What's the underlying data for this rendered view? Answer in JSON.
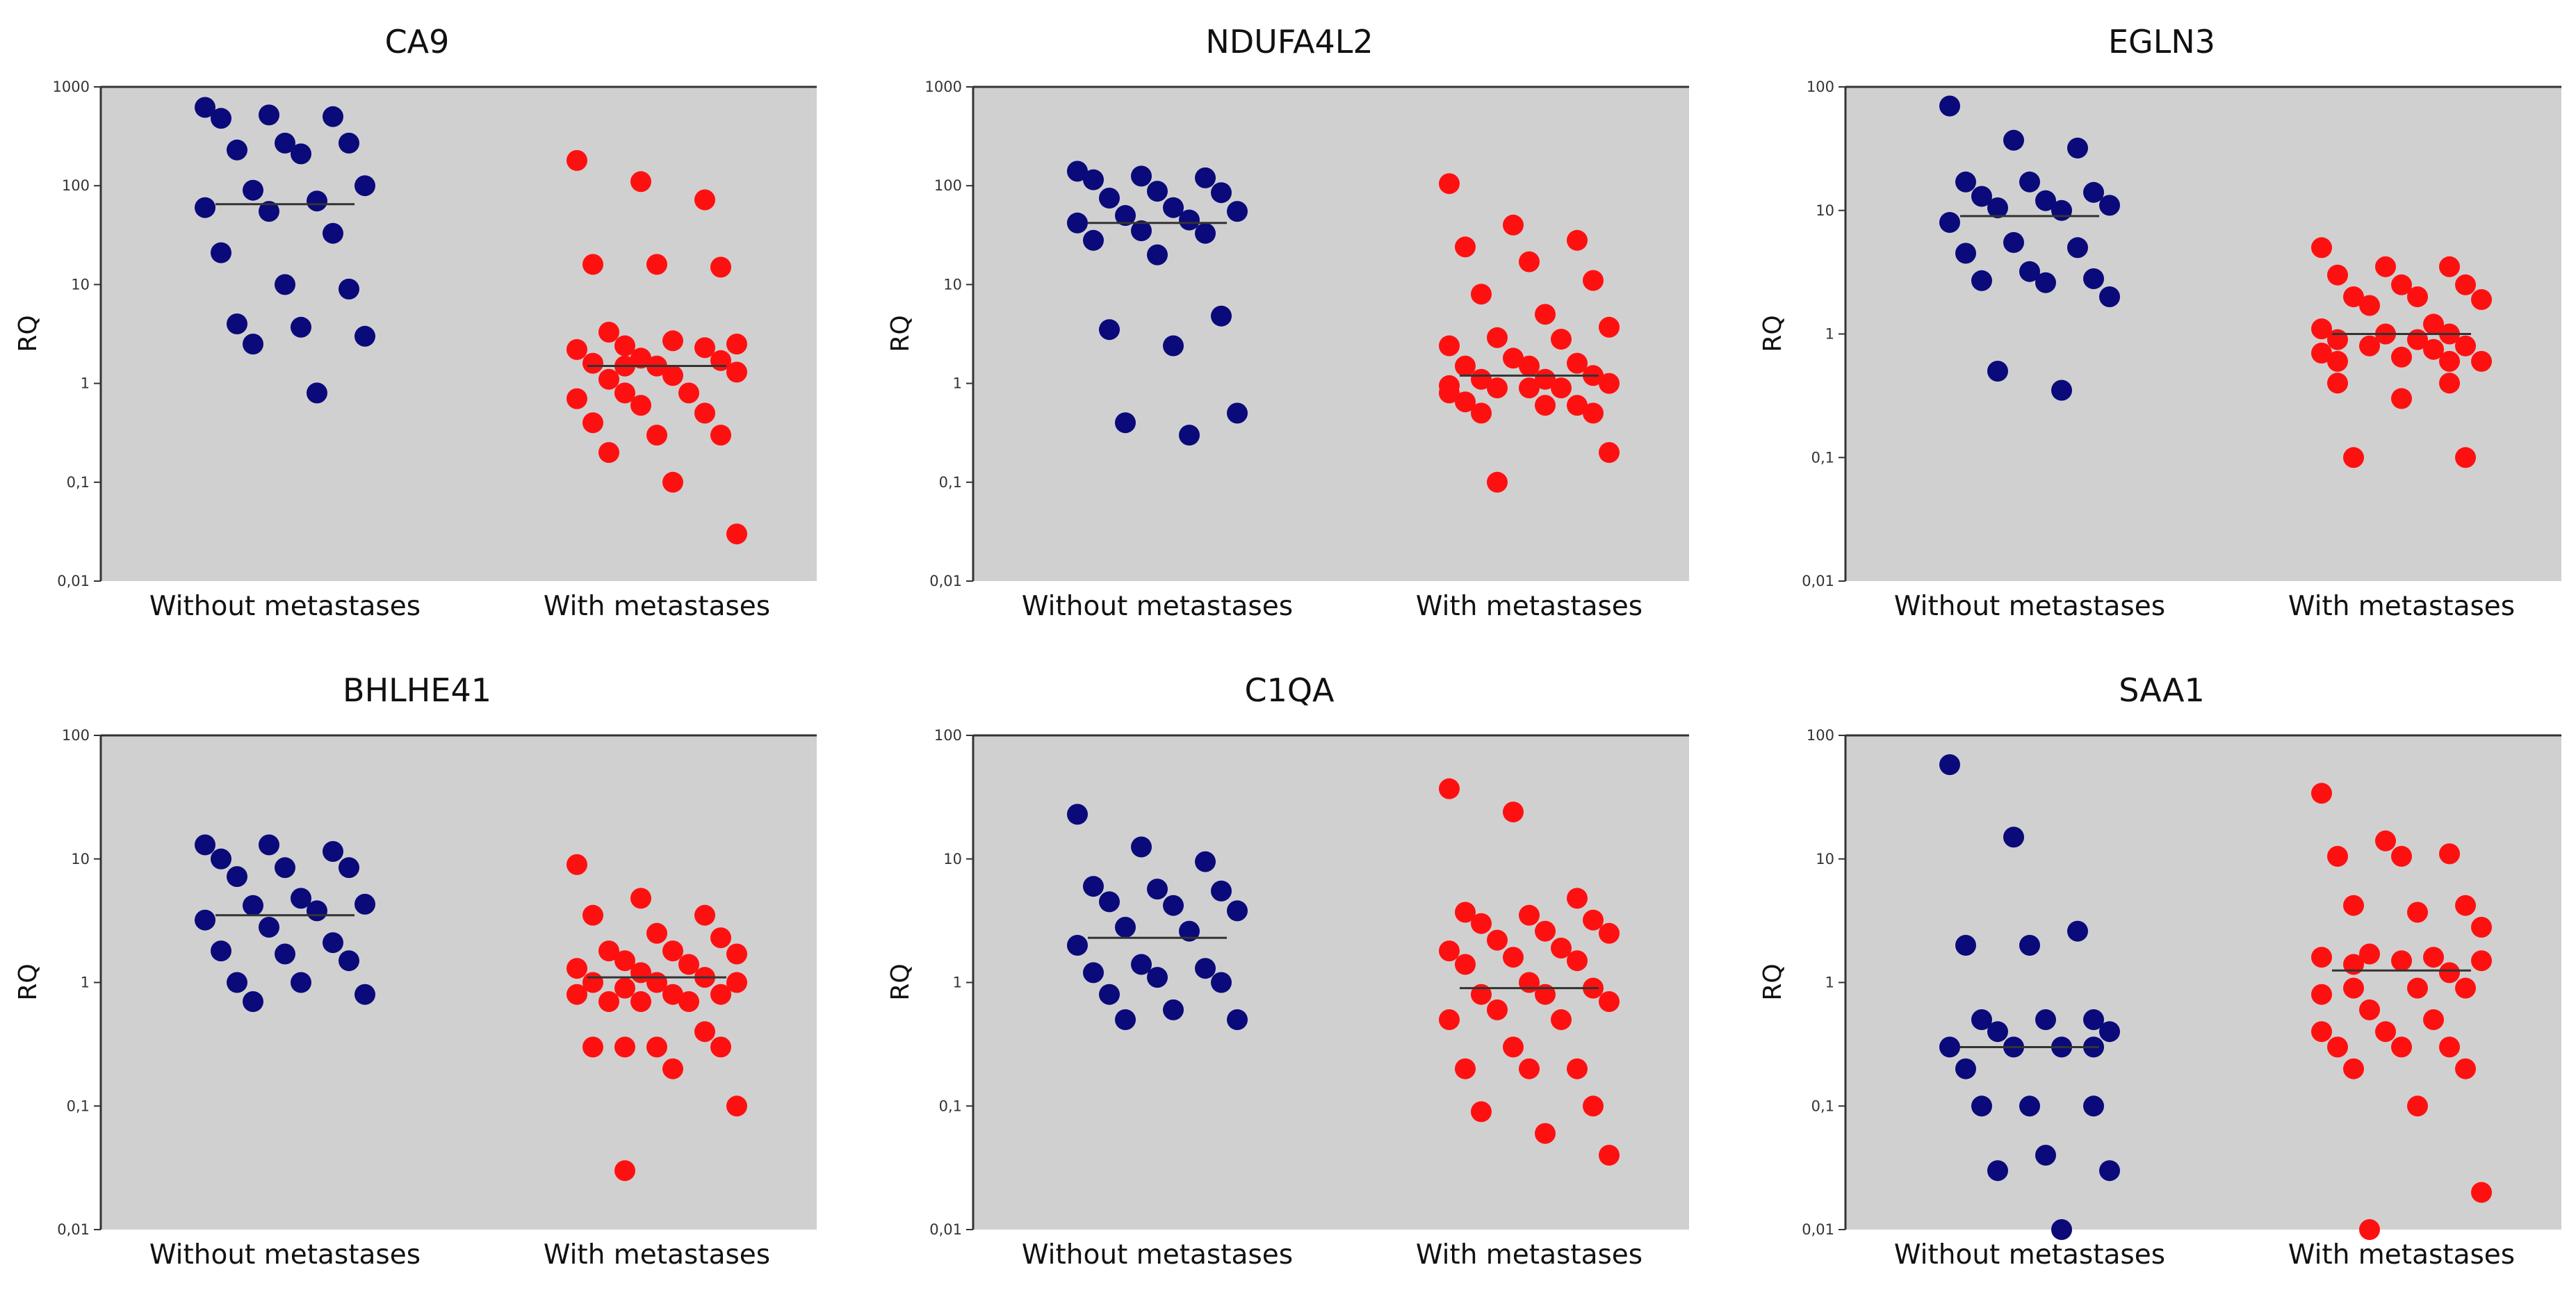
{
  "figure": {
    "y_axis_label": "RQ",
    "group_labels": [
      "Without metastases",
      "With metastases"
    ],
    "group_colors": [
      "#0a0a7a",
      "#ff1010"
    ]
  },
  "chart_data": [
    {
      "type": "scatter",
      "title": "CA9",
      "ylabel": "RQ",
      "yscale": "log",
      "ylim": [
        0.01,
        1000
      ],
      "ytick_labels": [
        "0,01",
        "0,1",
        "1",
        "10",
        "100",
        "1000"
      ],
      "categories": [
        "Without metastases",
        "With metastases"
      ],
      "series": [
        {
          "name": "Without metastases",
          "color": "#0a0a7a",
          "median": 65,
          "values": [
            520,
            480,
            620,
            270,
            270,
            210,
            230,
            500,
            90,
            70,
            60,
            100,
            55,
            33,
            21,
            9,
            10,
            4,
            3.7,
            3,
            2.5,
            0.8
          ]
        },
        {
          "name": "With metastases",
          "color": "#ff1010",
          "median": 1.5,
          "values": [
            180,
            110,
            72,
            16,
            15,
            16,
            3.3,
            2.3,
            2.5,
            2.2,
            1.5,
            1.8,
            1.6,
            1.7,
            2.7,
            2.4,
            1.5,
            1.1,
            1.2,
            1.3,
            0.8,
            0.6,
            0.7,
            0.5,
            0.8,
            0.4,
            0.3,
            0.3,
            0.2,
            0.1,
            0.03
          ]
        }
      ]
    },
    {
      "type": "scatter",
      "title": "NDUFA4L2",
      "ylabel": "RQ",
      "yscale": "log",
      "ylim": [
        0.01,
        1000
      ],
      "ytick_labels": [
        "0,01",
        "0,1",
        "1",
        "10",
        "100",
        "1000"
      ],
      "categories": [
        "Without metastases",
        "With metastases"
      ],
      "series": [
        {
          "name": "Without metastases",
          "color": "#0a0a7a",
          "median": 42,
          "values": [
            88,
            75,
            85,
            140,
            120,
            125,
            115,
            60,
            55,
            50,
            45,
            42,
            35,
            33,
            28,
            20,
            4.8,
            3.5,
            2.4,
            0.5,
            0.4,
            0.3
          ]
        },
        {
          "name": "With metastases",
          "color": "#ff1010",
          "median": 1.2,
          "values": [
            105,
            40,
            28,
            24,
            17,
            11,
            8,
            5,
            3.7,
            2.9,
            2.8,
            2.4,
            1.8,
            1.6,
            1.5,
            1.5,
            1.2,
            1.1,
            1.1,
            1.0,
            0.95,
            0.9,
            0.9,
            0.8,
            0.9,
            0.6,
            0.65,
            0.6,
            0.5,
            0.5,
            0.2,
            0.1
          ]
        }
      ]
    },
    {
      "type": "scatter",
      "title": "EGLN3",
      "ylabel": "RQ",
      "yscale": "log",
      "ylim": [
        0.01,
        100
      ],
      "ytick_labels": [
        "0,01",
        "0,1",
        "1",
        "10",
        "100"
      ],
      "categories": [
        "Without metastases",
        "With metastases"
      ],
      "series": [
        {
          "name": "Without metastases",
          "color": "#0a0a7a",
          "median": 9,
          "values": [
            70,
            37,
            32,
            17,
            17,
            14,
            13,
            12,
            11,
            10.5,
            10,
            8,
            5.5,
            5,
            4.5,
            3.2,
            2.8,
            2.7,
            2.6,
            2,
            0.5,
            0.35
          ]
        },
        {
          "name": "With metastases",
          "color": "#ff1010",
          "median": 1,
          "values": [
            5,
            3.5,
            3.5,
            3,
            2.5,
            2.5,
            2.0,
            2.0,
            1.9,
            1.7,
            1.2,
            1.1,
            1.0,
            1.0,
            0.9,
            0.9,
            0.8,
            0.8,
            0.75,
            0.7,
            0.65,
            0.6,
            0.6,
            0.6,
            0.4,
            0.4,
            0.3,
            0.1,
            0.1
          ]
        }
      ]
    },
    {
      "type": "scatter",
      "title": "BHLHE41",
      "ylabel": "RQ",
      "yscale": "log",
      "ylim": [
        0.01,
        100
      ],
      "ytick_labels": [
        "0,01",
        "0,1",
        "1",
        "10",
        "100"
      ],
      "categories": [
        "Without metastases",
        "With metastases"
      ],
      "series": [
        {
          "name": "Without metastases",
          "color": "#0a0a7a",
          "median": 3.5,
          "values": [
            13,
            11.5,
            13,
            10,
            8.5,
            8.5,
            7.2,
            4.8,
            4.3,
            4.2,
            3.8,
            3.2,
            2.8,
            2.1,
            1.8,
            1.7,
            1.5,
            1.0,
            1.0,
            0.8,
            0.7
          ]
        },
        {
          "name": "With metastases",
          "color": "#ff1010",
          "median": 1.1,
          "values": [
            9,
            4.8,
            3.5,
            3.5,
            2.5,
            2.3,
            1.8,
            1.8,
            1.7,
            1.5,
            1.4,
            1.3,
            1.2,
            1.1,
            1.0,
            1.0,
            1.0,
            0.9,
            0.8,
            0.8,
            0.8,
            0.7,
            0.7,
            0.7,
            0.4,
            0.3,
            0.3,
            0.3,
            0.3,
            0.2,
            0.1,
            0.03
          ]
        }
      ]
    },
    {
      "type": "scatter",
      "title": "C1QA",
      "ylabel": "RQ",
      "yscale": "log",
      "ylim": [
        0.01,
        100
      ],
      "ytick_labels": [
        "0,01",
        "0,1",
        "1",
        "10",
        "100"
      ],
      "categories": [
        "Without metastases",
        "With metastases"
      ],
      "series": [
        {
          "name": "Without metastases",
          "color": "#0a0a7a",
          "median": 2.3,
          "values": [
            23,
            12.5,
            9.5,
            6,
            5.7,
            5.5,
            4.5,
            4.2,
            3.8,
            2.8,
            2.6,
            2.0,
            1.4,
            1.3,
            1.2,
            1.1,
            1.0,
            0.8,
            0.6,
            0.5,
            0.5
          ]
        },
        {
          "name": "With metastases",
          "color": "#ff1010",
          "median": 0.9,
          "values": [
            37,
            24,
            4.8,
            3.7,
            3.5,
            3.2,
            3.0,
            2.5,
            2.6,
            2.2,
            1.9,
            1.8,
            1.6,
            1.5,
            1.4,
            1.0,
            0.9,
            0.8,
            0.8,
            0.7,
            0.6,
            0.5,
            0.5,
            0.3,
            0.2,
            0.2,
            0.2,
            0.1,
            0.09,
            0.06,
            0.04
          ]
        }
      ]
    },
    {
      "type": "scatter",
      "title": "SAA1",
      "ylabel": "RQ",
      "yscale": "log",
      "ylim": [
        0.01,
        100
      ],
      "ytick_labels": [
        "0,01",
        "0,1",
        "1",
        "10",
        "100"
      ],
      "categories": [
        "Without metastases",
        "With metastases"
      ],
      "series": [
        {
          "name": "Without metastases",
          "color": "#0a0a7a",
          "median": 0.3,
          "values": [
            58,
            15,
            2.6,
            2.0,
            2.0,
            0.5,
            0.5,
            0.5,
            0.4,
            0.4,
            0.3,
            0.3,
            0.3,
            0.3,
            0.2,
            0.1,
            0.1,
            0.1,
            0.04,
            0.03,
            0.03,
            0.01
          ]
        },
        {
          "name": "With metastases",
          "color": "#ff1010",
          "median": 1.25,
          "values": [
            34,
            14,
            11,
            10.5,
            10.5,
            4.2,
            4.2,
            3.7,
            2.8,
            1.7,
            1.6,
            1.6,
            1.5,
            1.5,
            1.4,
            1.2,
            0.9,
            0.9,
            0.9,
            0.8,
            0.6,
            0.5,
            0.4,
            0.4,
            0.3,
            0.3,
            0.3,
            0.2,
            0.2,
            0.1,
            0.02,
            0.01
          ]
        }
      ]
    }
  ]
}
